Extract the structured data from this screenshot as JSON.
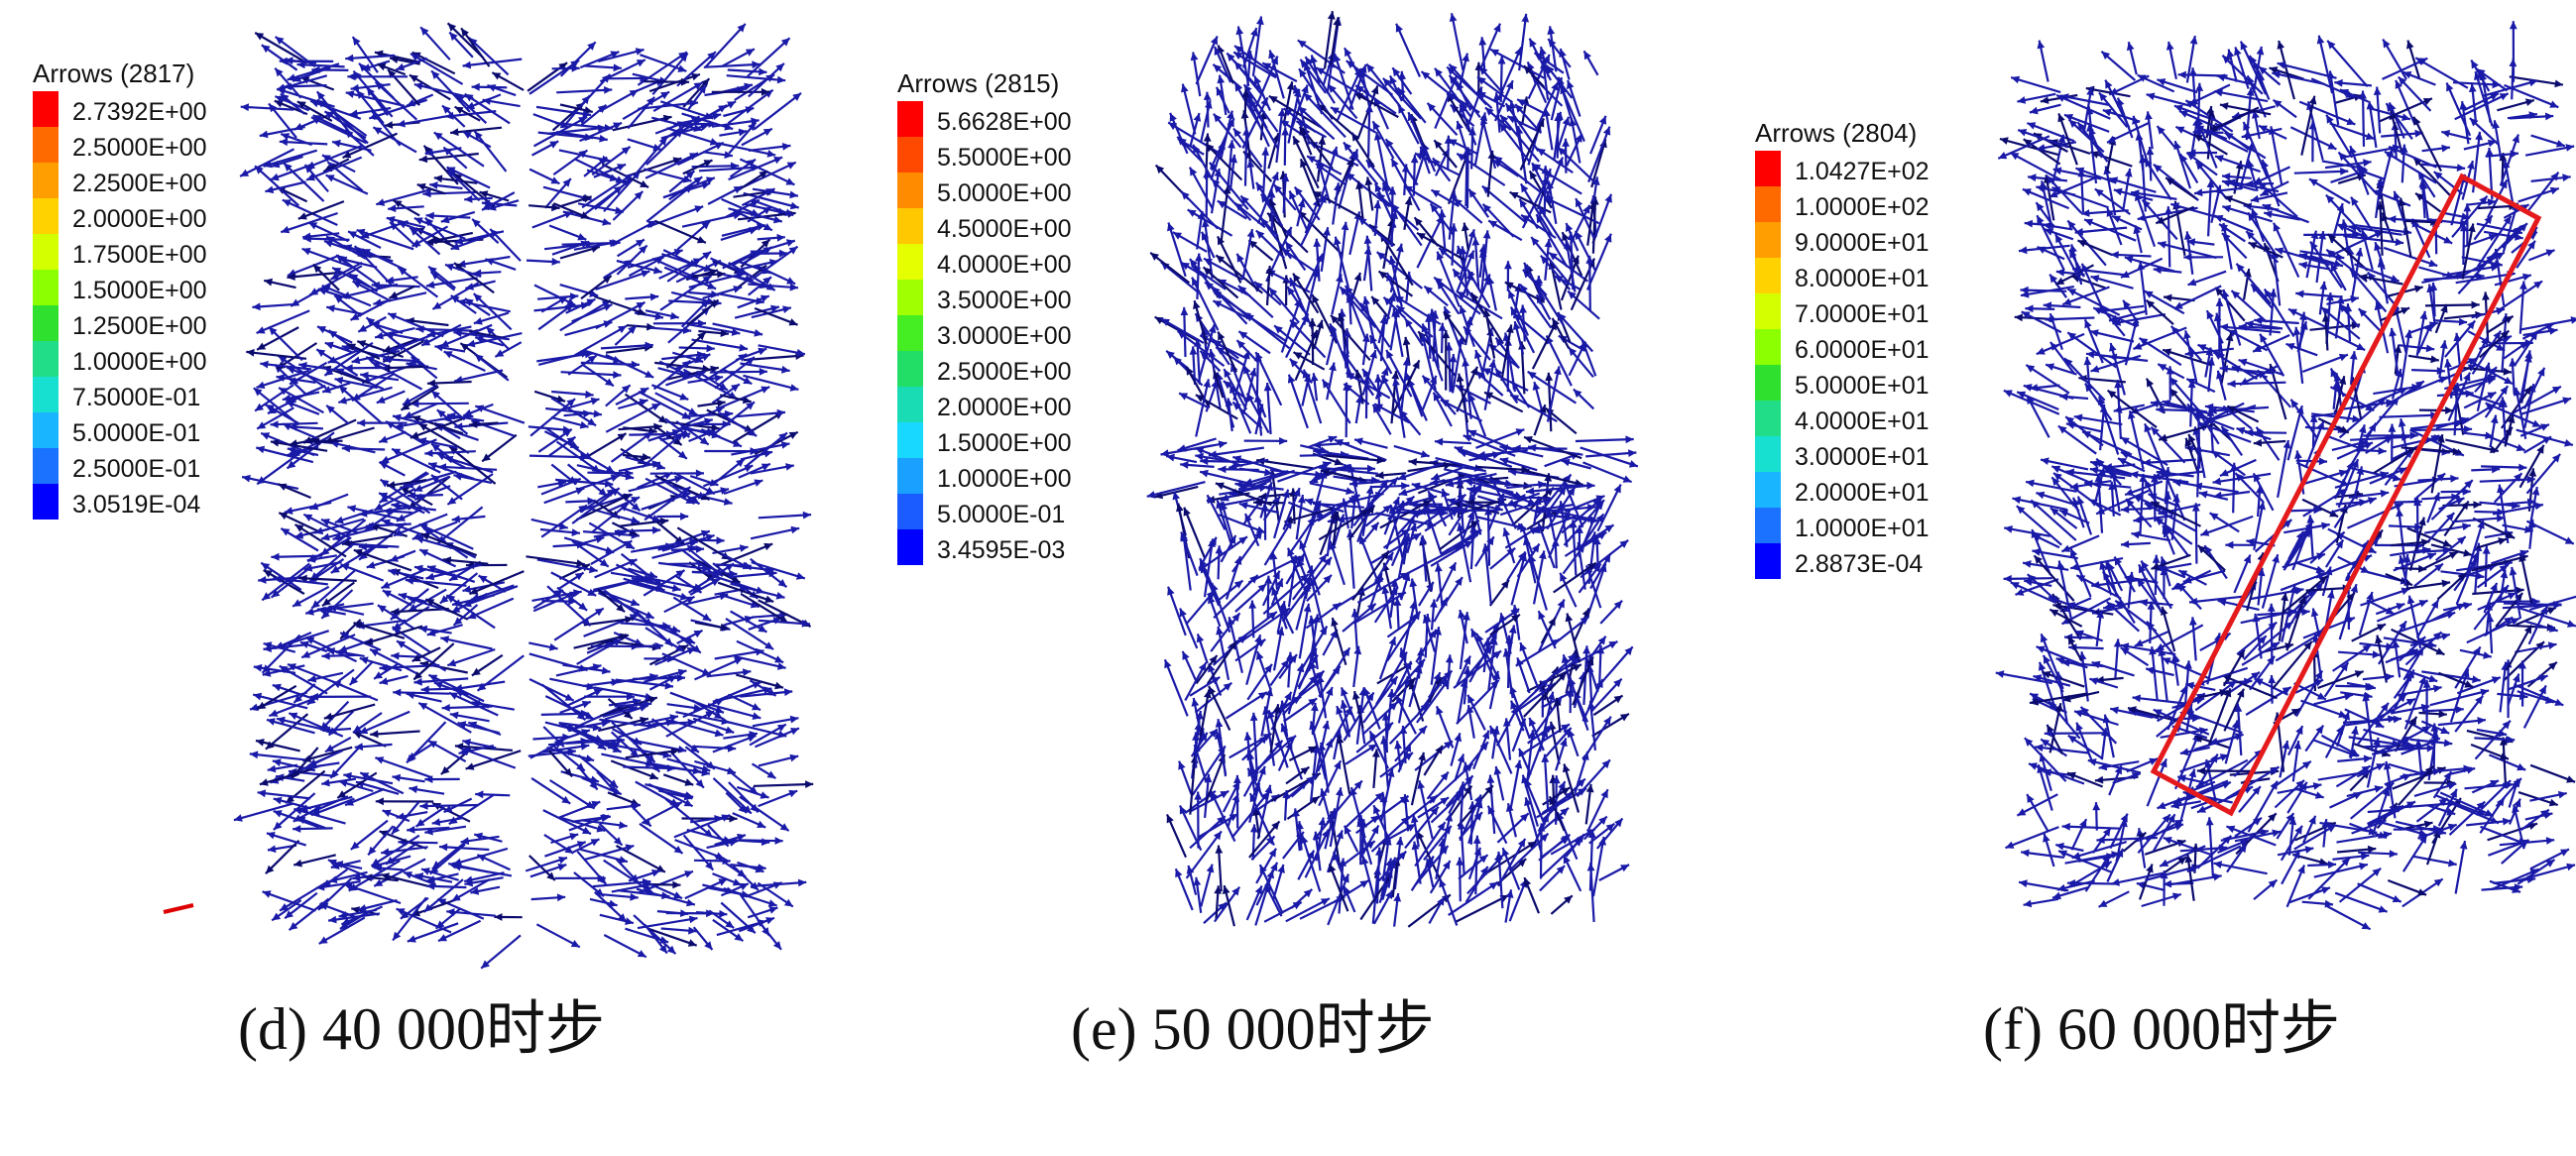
{
  "panels": [
    {
      "caption": "(d) 40 000时步",
      "legend": {
        "title": "Arrows (2817)",
        "labels": [
          "2.7392E+00",
          "2.5000E+00",
          "2.2500E+00",
          "2.0000E+00",
          "1.7500E+00",
          "1.5000E+00",
          "1.2500E+00",
          "1.0000E+00",
          "7.5000E-01",
          "5.0000E-01",
          "2.5000E-01",
          "3.0519E-04"
        ]
      },
      "pattern": "radial-outward",
      "highlight_box": false
    },
    {
      "caption": "(e) 50 000时步",
      "legend": {
        "title": "Arrows (2815)",
        "labels": [
          "5.6628E+00",
          "5.5000E+00",
          "5.0000E+00",
          "4.5000E+00",
          "4.0000E+00",
          "3.5000E+00",
          "3.0000E+00",
          "2.5000E+00",
          "2.0000E+00",
          "1.5000E+00",
          "1.0000E+00",
          "5.0000E-01",
          "3.4595E-03"
        ]
      },
      "pattern": "diagonal-shear",
      "highlight_box": false
    },
    {
      "caption": "(f) 60 000时步",
      "legend": {
        "title": "Arrows (2804)",
        "labels": [
          "1.0427E+02",
          "1.0000E+02",
          "9.0000E+01",
          "8.0000E+01",
          "7.0000E+01",
          "6.0000E+01",
          "5.0000E+01",
          "4.0000E+01",
          "3.0000E+01",
          "2.0000E+01",
          "1.0000E+01",
          "2.8873E-04"
        ]
      },
      "pattern": "shear-band",
      "highlight_box": true
    }
  ],
  "colors": {
    "arrow": "#1a1aa8",
    "arrow_dark": "#0b0b6e",
    "highlight": "#e41a1c",
    "scale": [
      "#ff0000",
      "#ff6a00",
      "#ff9e00",
      "#ffd200",
      "#d4ff00",
      "#8cff00",
      "#2fe02f",
      "#22dd88",
      "#18e0d0",
      "#19b6ff",
      "#1a72ff",
      "#0000ff"
    ],
    "scale13": [
      "#ff0000",
      "#ff4800",
      "#ff8c00",
      "#ffc800",
      "#e6ff00",
      "#a0ff00",
      "#44ee22",
      "#22dd66",
      "#19dcb4",
      "#18d8ff",
      "#1aa0ff",
      "#1a5cff",
      "#0000ff"
    ]
  }
}
